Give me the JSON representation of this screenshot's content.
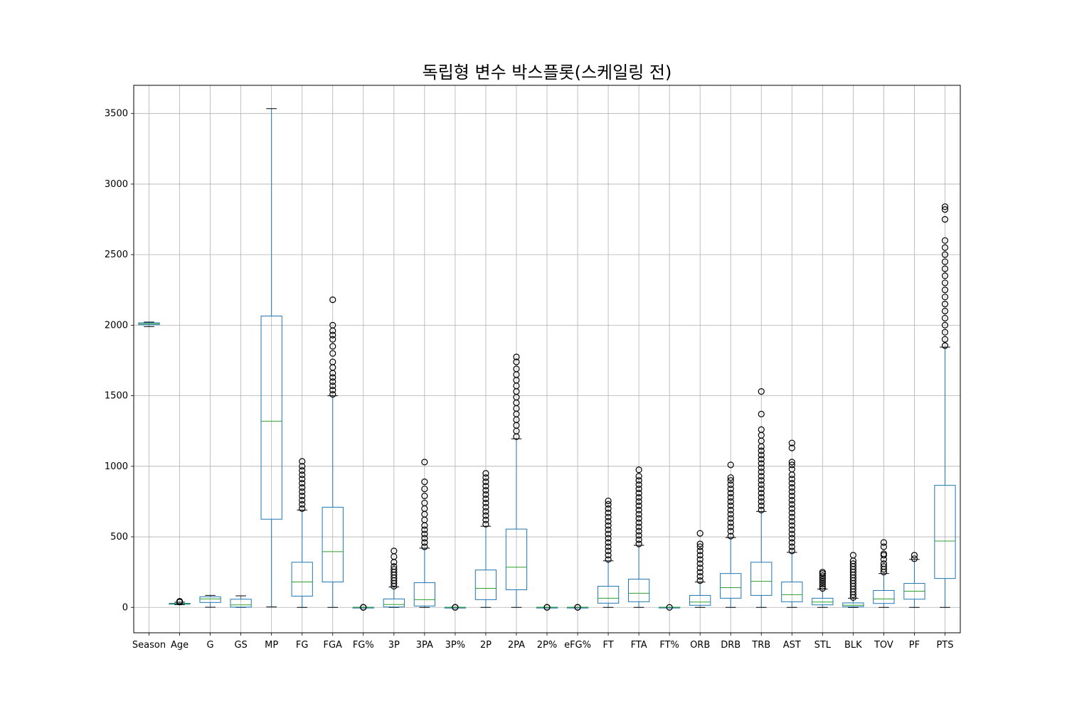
{
  "chart_data": {
    "type": "box",
    "title": "독립형 변수 박스플롯(스케일링 전)",
    "xlabel": "",
    "ylabel": "",
    "ylim": [
      -180,
      3700
    ],
    "yticks": [
      0,
      500,
      1000,
      1500,
      2000,
      2500,
      3000,
      3500
    ],
    "grid": true,
    "colors": {
      "box": "#1f77b4",
      "median": "#2ca02c",
      "flier": "#000000",
      "grid": "#b0b0b0"
    },
    "categories": [
      "Season",
      "Age",
      "G",
      "GS",
      "MP",
      "FG",
      "FGA",
      "FG%",
      "3P",
      "3PA",
      "3P%",
      "2P",
      "2PA",
      "2P%",
      "eFG%",
      "FT",
      "FTA",
      "FT%",
      "ORB",
      "DRB",
      "TRB",
      "AST",
      "STL",
      "BLK",
      "TOV",
      "PF",
      "PTS"
    ],
    "boxes": [
      {
        "label": "Season",
        "whislo": 1990,
        "q1": 2003,
        "med": 2010,
        "q3": 2017,
        "whishi": 2022,
        "fliers": []
      },
      {
        "label": "Age",
        "whislo": 19,
        "q1": 23,
        "med": 26,
        "q3": 29,
        "whishi": 37,
        "fliers": [
          38,
          39,
          40,
          41,
          42,
          43
        ]
      },
      {
        "label": "G",
        "whislo": 1,
        "q1": 35,
        "med": 60,
        "q3": 75,
        "whishi": 85,
        "fliers": []
      },
      {
        "label": "GS",
        "whislo": 0,
        "q1": 2,
        "med": 18,
        "q3": 58,
        "whishi": 82,
        "fliers": []
      },
      {
        "label": "MP",
        "whislo": 3,
        "q1": 625,
        "med": 1320,
        "q3": 2065,
        "whishi": 3535,
        "fliers": []
      },
      {
        "label": "FG",
        "whislo": 0,
        "q1": 80,
        "med": 180,
        "q3": 320,
        "whishi": 690,
        "fliers": [
          700,
          730,
          760,
          790,
          820,
          850,
          880,
          910,
          940,
          970,
          1000,
          1035
        ]
      },
      {
        "label": "FGA",
        "whislo": 0,
        "q1": 180,
        "med": 395,
        "q3": 710,
        "whishi": 1500,
        "fliers": [
          1510,
          1540,
          1570,
          1600,
          1630,
          1660,
          1700,
          1740,
          1800,
          1850,
          1900,
          1930,
          1960,
          2000,
          2180
        ]
      },
      {
        "label": "FG%",
        "whislo": 0,
        "q1": 0.4,
        "med": 0.44,
        "q3": 0.48,
        "whishi": 0.6,
        "fliers": [
          0,
          1
        ]
      },
      {
        "label": "3P",
        "whislo": 0,
        "q1": 3,
        "med": 20,
        "q3": 60,
        "whishi": 145,
        "fliers": [
          150,
          170,
          190,
          210,
          230,
          250,
          270,
          290,
          320,
          360,
          400
        ]
      },
      {
        "label": "3PA",
        "whislo": 0,
        "q1": 10,
        "med": 55,
        "q3": 175,
        "whishi": 420,
        "fliers": [
          430,
          460,
          490,
          520,
          550,
          580,
          620,
          660,
          700,
          740,
          790,
          840,
          890,
          1030
        ]
      },
      {
        "label": "3P%",
        "whislo": 0,
        "q1": 0.2,
        "med": 0.32,
        "q3": 0.37,
        "whishi": 0.5,
        "fliers": [
          0,
          1
        ]
      },
      {
        "label": "2P",
        "whislo": 0,
        "q1": 55,
        "med": 135,
        "q3": 265,
        "whishi": 575,
        "fliers": [
          590,
          620,
          650,
          680,
          710,
          740,
          770,
          800,
          830,
          860,
          890,
          920,
          950
        ]
      },
      {
        "label": "2PA",
        "whislo": 0,
        "q1": 125,
        "med": 285,
        "q3": 555,
        "whishi": 1195,
        "fliers": [
          1210,
          1250,
          1290,
          1330,
          1370,
          1410,
          1450,
          1490,
          1530,
          1570,
          1610,
          1650,
          1690,
          1740,
          1775
        ]
      },
      {
        "label": "2P%",
        "whislo": 0,
        "q1": 0.43,
        "med": 0.48,
        "q3": 0.52,
        "whishi": 0.65,
        "fliers": [
          0,
          1
        ]
      },
      {
        "label": "eFG%",
        "whislo": 0,
        "q1": 0.45,
        "med": 0.49,
        "q3": 0.53,
        "whishi": 0.65,
        "fliers": [
          0,
          1
        ]
      },
      {
        "label": "FT",
        "whislo": 0,
        "q1": 30,
        "med": 65,
        "q3": 150,
        "whishi": 330,
        "fliers": [
          340,
          370,
          400,
          430,
          460,
          490,
          520,
          550,
          580,
          610,
          640,
          670,
          700,
          730,
          755
        ]
      },
      {
        "label": "FTA",
        "whislo": 0,
        "q1": 40,
        "med": 100,
        "q3": 200,
        "whishi": 440,
        "fliers": [
          450,
          480,
          510,
          540,
          570,
          600,
          630,
          660,
          690,
          720,
          750,
          780,
          810,
          840,
          870,
          900,
          930,
          975
        ]
      },
      {
        "label": "FT%",
        "whislo": 0,
        "q1": 0.68,
        "med": 0.76,
        "q3": 0.82,
        "whishi": 1,
        "fliers": [
          0
        ]
      },
      {
        "label": "ORB",
        "whislo": 0,
        "q1": 15,
        "med": 38,
        "q3": 85,
        "whishi": 180,
        "fliers": [
          190,
          220,
          250,
          280,
          310,
          340,
          370,
          400,
          430,
          450,
          525
        ]
      },
      {
        "label": "DRB",
        "whislo": 0,
        "q1": 65,
        "med": 140,
        "q3": 240,
        "whishi": 495,
        "fliers": [
          505,
          540,
          570,
          600,
          630,
          660,
          690,
          720,
          750,
          780,
          810,
          840,
          870,
          900,
          920,
          1010
        ]
      },
      {
        "label": "TRB",
        "whislo": 0,
        "q1": 85,
        "med": 185,
        "q3": 320,
        "whishi": 680,
        "fliers": [
          690,
          720,
          750,
          780,
          810,
          840,
          870,
          900,
          930,
          960,
          990,
          1020,
          1050,
          1080,
          1110,
          1140,
          1180,
          1220,
          1260,
          1370,
          1530
        ]
      },
      {
        "label": "AST",
        "whislo": 0,
        "q1": 40,
        "med": 90,
        "q3": 180,
        "whishi": 390,
        "fliers": [
          400,
          430,
          460,
          490,
          520,
          550,
          580,
          610,
          640,
          670,
          700,
          730,
          760,
          790,
          820,
          850,
          880,
          910,
          940,
          980,
          1010,
          1030,
          1130,
          1165
        ]
      },
      {
        "label": "STL",
        "whislo": 0,
        "q1": 18,
        "med": 38,
        "q3": 65,
        "whishi": 130,
        "fliers": [
          135,
          150,
          165,
          180,
          195,
          210,
          225,
          240,
          250
        ]
      },
      {
        "label": "BLK",
        "whislo": 0,
        "q1": 5,
        "med": 15,
        "q3": 32,
        "whishi": 65,
        "fliers": [
          70,
          90,
          110,
          130,
          150,
          170,
          190,
          210,
          230,
          250,
          270,
          290,
          310,
          330,
          370
        ]
      },
      {
        "label": "TOV",
        "whislo": 0,
        "q1": 28,
        "med": 60,
        "q3": 120,
        "whishi": 240,
        "fliers": [
          250,
          270,
          290,
          310,
          340,
          370,
          380,
          430,
          460
        ]
      },
      {
        "label": "PF",
        "whislo": 0,
        "q1": 58,
        "med": 115,
        "q3": 170,
        "whishi": 340,
        "fliers": [
          345,
          370
        ]
      },
      {
        "label": "PTS",
        "whislo": 0,
        "q1": 205,
        "med": 470,
        "q3": 865,
        "whishi": 1845,
        "fliers": [
          1855,
          1900,
          1950,
          2000,
          2050,
          2100,
          2150,
          2200,
          2250,
          2300,
          2350,
          2400,
          2450,
          2500,
          2550,
          2600,
          2750,
          2820,
          2840
        ]
      }
    ]
  }
}
